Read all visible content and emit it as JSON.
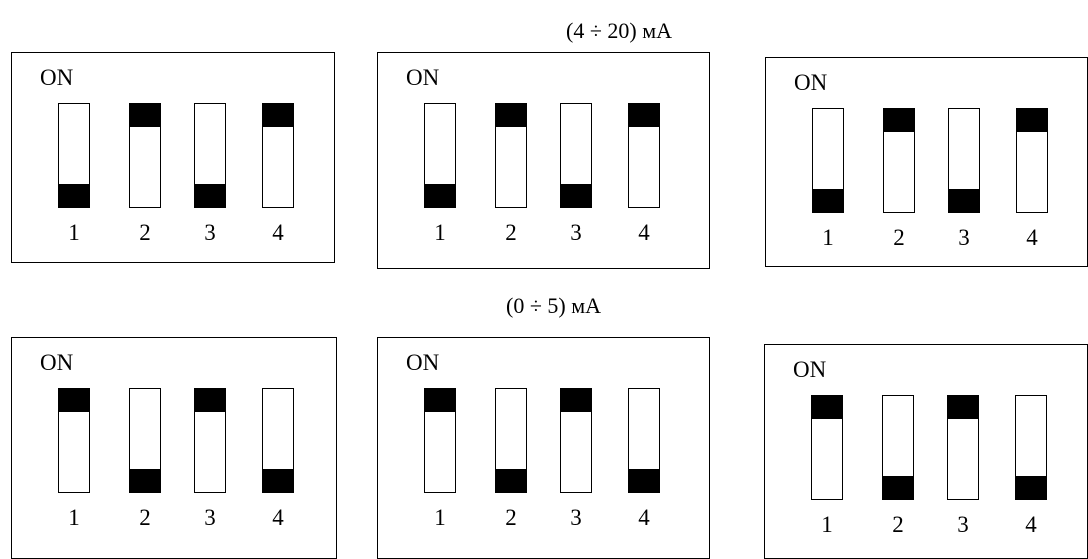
{
  "sections": [
    {
      "heading": "(4 ÷ 20) мА",
      "on_label": "ON",
      "panels": [
        {
          "switches": [
            {
              "label": "1",
              "state": "off"
            },
            {
              "label": "2",
              "state": "on"
            },
            {
              "label": "3",
              "state": "off"
            },
            {
              "label": "4",
              "state": "on"
            }
          ]
        },
        {
          "switches": [
            {
              "label": "1",
              "state": "off"
            },
            {
              "label": "2",
              "state": "on"
            },
            {
              "label": "3",
              "state": "off"
            },
            {
              "label": "4",
              "state": "on"
            }
          ]
        },
        {
          "switches": [
            {
              "label": "1",
              "state": "off"
            },
            {
              "label": "2",
              "state": "on"
            },
            {
              "label": "3",
              "state": "off"
            },
            {
              "label": "4",
              "state": "on"
            }
          ]
        }
      ]
    },
    {
      "heading": "(0 ÷ 5) мА",
      "on_label": "ON",
      "panels": [
        {
          "switches": [
            {
              "label": "1",
              "state": "on"
            },
            {
              "label": "2",
              "state": "off"
            },
            {
              "label": "3",
              "state": "on"
            },
            {
              "label": "4",
              "state": "off"
            }
          ]
        },
        {
          "switches": [
            {
              "label": "1",
              "state": "on"
            },
            {
              "label": "2",
              "state": "off"
            },
            {
              "label": "3",
              "state": "on"
            },
            {
              "label": "4",
              "state": "off"
            }
          ]
        },
        {
          "switches": [
            {
              "label": "1",
              "state": "on"
            },
            {
              "label": "2",
              "state": "off"
            },
            {
              "label": "3",
              "state": "on"
            },
            {
              "label": "4",
              "state": "off"
            }
          ]
        }
      ]
    }
  ]
}
